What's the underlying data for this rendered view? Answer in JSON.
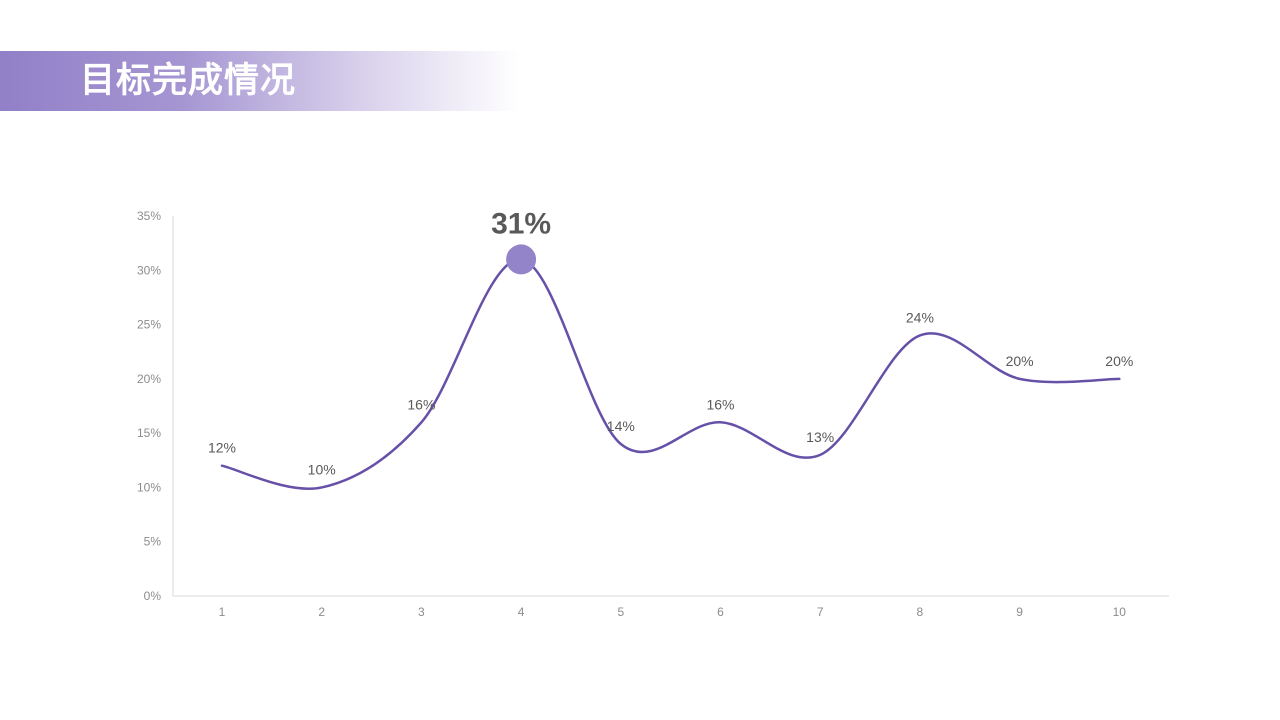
{
  "slide": {
    "title": "目标完成情况"
  },
  "colors": {
    "accent": "#6650a8",
    "marker": "#9384c9",
    "title_banner": "#9280c8",
    "axis": "#d9d9d9",
    "tick_text": "#8c8c8c",
    "label_text": "#595959"
  },
  "chart_data": {
    "type": "line",
    "x": [
      "1",
      "2",
      "3",
      "4",
      "5",
      "6",
      "7",
      "8",
      "9",
      "10"
    ],
    "series": [
      {
        "values": [
          12,
          10,
          16,
          31,
          14,
          16,
          13,
          24,
          20,
          20
        ],
        "data_labels": [
          "12%",
          "10%",
          "16%",
          "31%",
          "14%",
          "16%",
          "13%",
          "24%",
          "20%",
          "20%"
        ]
      }
    ],
    "y_ticks": [
      "0%",
      "5%",
      "10%",
      "15%",
      "20%",
      "25%",
      "30%",
      "35%"
    ],
    "ylim": [
      0,
      35
    ],
    "smooth": true,
    "highlight": {
      "index": 3,
      "label": "31%"
    },
    "grid": false,
    "legend": "none"
  }
}
